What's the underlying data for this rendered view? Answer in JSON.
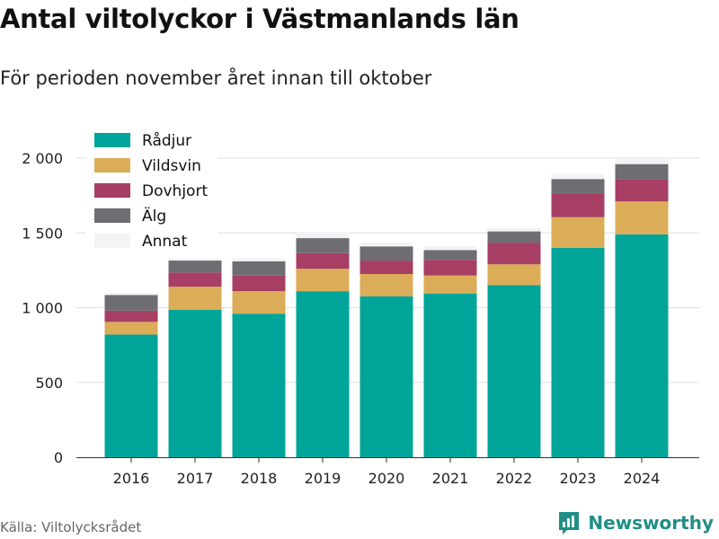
{
  "title": "Antal viltolyckor i Västmanlands län",
  "subtitle": "För perioden november året innan till oktober",
  "source": "Källa: Viltolycksrådet",
  "brand": {
    "name": "Newsworthy",
    "icon": "bar-chart-logo-icon"
  },
  "colors": {
    "Rådjur": "#00a498",
    "Vildsvin": "#dbad58",
    "Dovhjort": "#a73e64",
    "Älg": "#6e6d73",
    "Annat": "#f3f3f3",
    "grid": "#dddddd",
    "brand": "#1f8f86"
  },
  "chart_data": {
    "type": "bar",
    "stacked": true,
    "categories": [
      "2016",
      "2017",
      "2018",
      "2019",
      "2020",
      "2021",
      "2022",
      "2023",
      "2024"
    ],
    "series": [
      {
        "name": "Rådjur",
        "values": [
          820,
          985,
          960,
          1110,
          1075,
          1095,
          1150,
          1400,
          1490
        ]
      },
      {
        "name": "Vildsvin",
        "values": [
          85,
          155,
          150,
          150,
          150,
          120,
          140,
          205,
          220
        ]
      },
      {
        "name": "Dovhjort",
        "values": [
          75,
          95,
          105,
          105,
          90,
          105,
          145,
          160,
          150
        ]
      },
      {
        "name": "Älg",
        "values": [
          105,
          80,
          95,
          100,
          95,
          65,
          75,
          95,
          100
        ]
      },
      {
        "name": "Annat",
        "values": [
          15,
          15,
          20,
          40,
          25,
          25,
          25,
          35,
          40
        ]
      }
    ],
    "ylim": [
      0,
      2000
    ],
    "yticks": [
      0,
      500,
      1000,
      1500,
      2000
    ],
    "ytick_labels": [
      "0",
      "500",
      "1 000",
      "1 500",
      "2 000"
    ],
    "grid": true,
    "legend": "top-left",
    "xlabel": "",
    "ylabel": ""
  }
}
